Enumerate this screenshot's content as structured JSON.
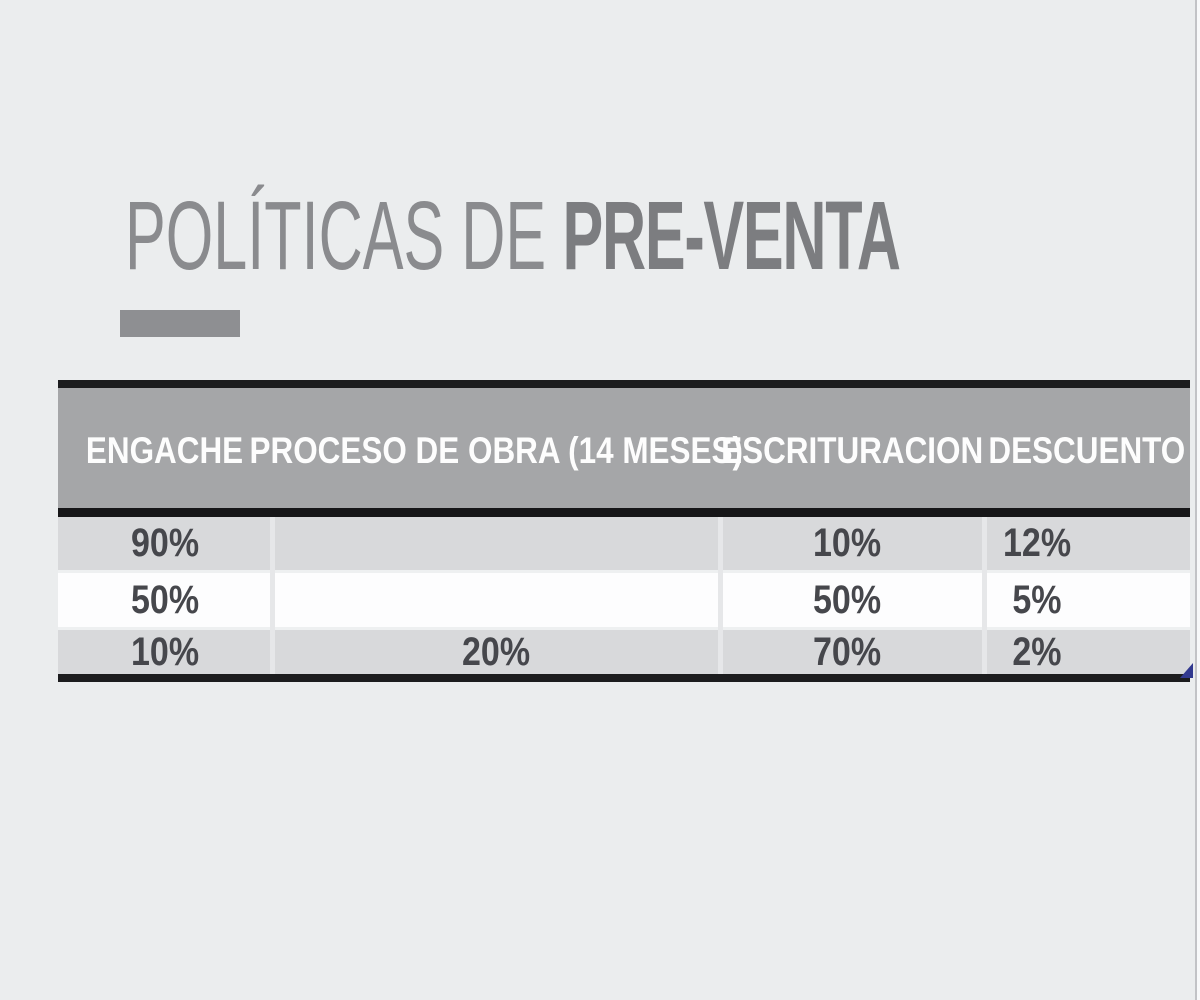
{
  "slide": {
    "title": {
      "light": "POLÍTICAS DE",
      "bold": "PRE-VENTA"
    }
  },
  "table": {
    "columns": [
      "ENGACHE",
      "PROCESO DE OBRA (14 MESES)",
      "ESCRITURACION",
      "DESCUENTO"
    ],
    "rows": [
      [
        "90%",
        "",
        "10%",
        "12%"
      ],
      [
        "50%",
        "",
        "50%",
        "5%"
      ],
      [
        "10%",
        "20%",
        "70%",
        "2%"
      ]
    ]
  },
  "icons": {
    "resize_handle": "table-resize-triangle"
  },
  "colors": {
    "background": "#ebedee",
    "title_gray": "#8a8b8e",
    "accent_bar": "#8e8f92",
    "header_band": "#a5a6a8",
    "header_text": "#fdfdfd",
    "row_gray": "#d8d9db",
    "row_white": "#fdfdfe",
    "table_border": "#1c1c1e",
    "cell_text": "#46474c",
    "resize_handle": "#32398f"
  }
}
